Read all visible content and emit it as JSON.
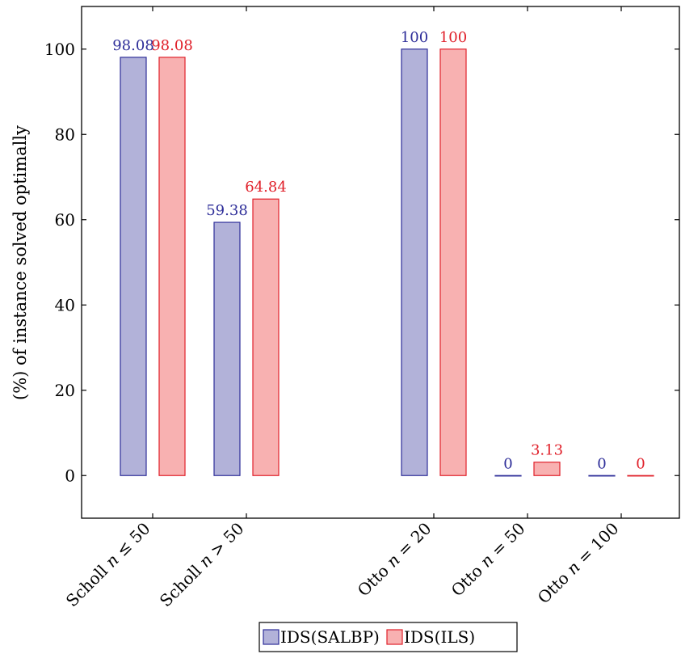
{
  "chart_data": {
    "type": "bar",
    "categories": [
      "Scholl n ≤ 50",
      "Scholl n > 50",
      "Otto n = 20",
      "Otto n = 50",
      "Otto n = 100"
    ],
    "series": [
      {
        "name": "IDS(SALBP)",
        "values": [
          98.08,
          59.38,
          100,
          0,
          0
        ],
        "labels": [
          "98.08",
          "59.38",
          "100",
          "0",
          "0"
        ],
        "fill": "#b2b2d9",
        "stroke": "#2e2e99",
        "label_color": "#2e2e99"
      },
      {
        "name": "IDS(ILS)",
        "values": [
          98.08,
          64.84,
          100,
          3.13,
          0
        ],
        "labels": [
          "98.08",
          "64.84",
          "100",
          "3.13",
          "0"
        ],
        "fill": "#f8b1b1",
        "stroke": "#e0202a",
        "label_color": "#e0202a"
      }
    ],
    "xlabel": "",
    "ylabel": "(%) of instance solved optimally",
    "ylim": [
      -10,
      110
    ],
    "yticks": [
      0,
      20,
      40,
      60,
      80,
      100
    ],
    "grid": false,
    "legend_position": "bottom-center"
  }
}
